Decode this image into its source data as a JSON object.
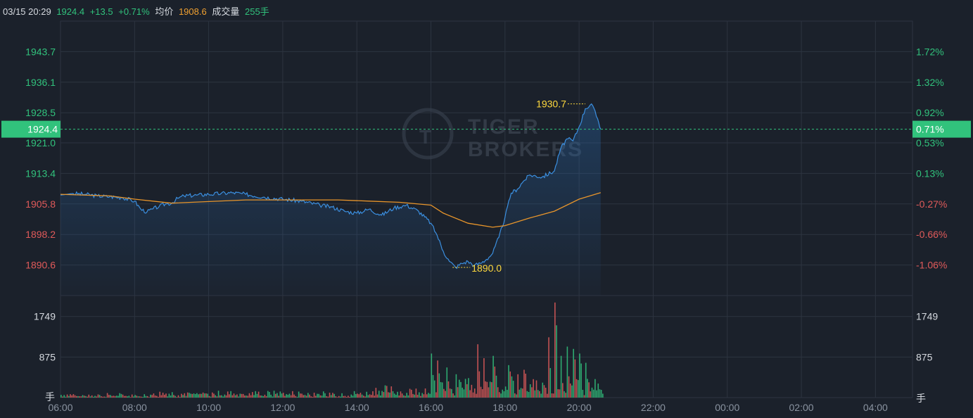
{
  "header": {
    "datetime": "03/15 20:29",
    "price": "1924.4",
    "change": "+13.5",
    "change_pct": "+0.71%",
    "avg_label": "均价",
    "avg_value": "1908.6",
    "volume_label": "成交量",
    "volume_value": "255手"
  },
  "watermark": {
    "line1": "TIGER",
    "line2": "BROKERS"
  },
  "colors": {
    "up": "#31c27c",
    "down": "#e05a5a",
    "price_line": "#3b8fe0",
    "avg_line": "#e8952b",
    "highlight": "#ffd93d",
    "grid": "#2d3440",
    "background": "#1b212b"
  },
  "chart_data": [
    {
      "type": "line",
      "prev_close": 1910.9,
      "current_price": 1924.4,
      "current_price_label": "1924.4",
      "current_pct_label": "0.71%",
      "ylim": [
        1883.0,
        1951.3
      ],
      "left_ticks": [
        {
          "value": 1943.7,
          "label": "1943.7",
          "dir": "up"
        },
        {
          "value": 1936.1,
          "label": "1936.1",
          "dir": "up"
        },
        {
          "value": 1928.5,
          "label": "1928.5",
          "dir": "up"
        },
        {
          "value": 1921.0,
          "label": "1921.0",
          "dir": "up"
        },
        {
          "value": 1913.4,
          "label": "1913.4",
          "dir": "up"
        },
        {
          "value": 1905.8,
          "label": "1905.8",
          "dir": "down"
        },
        {
          "value": 1898.2,
          "label": "1898.2",
          "dir": "down"
        },
        {
          "value": 1890.6,
          "label": "1890.6",
          "dir": "down"
        }
      ],
      "right_ticks": [
        {
          "value": 1943.7,
          "label": "1.72%",
          "dir": "up"
        },
        {
          "value": 1936.1,
          "label": "1.32%",
          "dir": "up"
        },
        {
          "value": 1928.5,
          "label": "0.92%",
          "dir": "up"
        },
        {
          "value": 1921.0,
          "label": "0.53%",
          "dir": "up"
        },
        {
          "value": 1913.4,
          "label": "0.13%",
          "dir": "up"
        },
        {
          "value": 1905.8,
          "label": "-0.27%",
          "dir": "down"
        },
        {
          "value": 1898.2,
          "label": "-0.66%",
          "dir": "down"
        },
        {
          "value": 1890.6,
          "label": "-1.06%",
          "dir": "down"
        }
      ],
      "x_ticks": [
        "06:00",
        "08:00",
        "10:00",
        "12:00",
        "14:00",
        "16:00",
        "18:00",
        "20:00",
        "22:00",
        "00:00",
        "02:00",
        "04:00"
      ],
      "x_range_minutes": [
        0,
        1380
      ],
      "high": {
        "label": "1930.7",
        "value": 1930.7,
        "minute": 850
      },
      "low": {
        "label": "1890.0",
        "value": 1890.0,
        "minute": 635
      },
      "price_series": {
        "x": [
          0,
          20,
          40,
          60,
          80,
          100,
          120,
          130,
          140,
          150,
          160,
          170,
          180,
          190,
          200,
          220,
          240,
          260,
          280,
          300,
          330,
          360,
          390,
          420,
          440,
          460,
          480,
          500,
          520,
          540,
          560,
          580,
          600,
          610,
          620,
          630,
          640,
          650,
          660,
          670,
          680,
          690,
          700,
          710,
          720,
          730,
          740,
          750,
          760,
          780,
          800,
          810,
          820,
          830,
          840,
          850,
          860,
          870,
          875
        ],
        "y": [
          1908.0,
          1908.4,
          1908.2,
          1907.8,
          1907.6,
          1907.4,
          1906.5,
          1904.5,
          1903.8,
          1904.6,
          1905.2,
          1905.8,
          1906.0,
          1907.2,
          1907.8,
          1908.0,
          1908.2,
          1908.4,
          1908.6,
          1908.2,
          1907.5,
          1907.0,
          1906.5,
          1905.5,
          1905.0,
          1904.0,
          1903.5,
          1904.5,
          1903.0,
          1904.8,
          1905.5,
          1904.0,
          1901.0,
          1898.0,
          1894.0,
          1891.5,
          1890.0,
          1891.0,
          1891.5,
          1890.5,
          1891.0,
          1892.0,
          1893.5,
          1897.5,
          1902.5,
          1908.5,
          1909.5,
          1911.5,
          1913.0,
          1912.5,
          1914.0,
          1919.5,
          1922.0,
          1921.5,
          1925.0,
          1929.5,
          1930.7,
          1927.0,
          1924.4
        ]
      },
      "avg_series": {
        "x": [
          0,
          80,
          120,
          180,
          300,
          450,
          500,
          550,
          600,
          620,
          660,
          700,
          720,
          760,
          800,
          840,
          875
        ],
        "y": [
          1908.2,
          1907.8,
          1907.0,
          1906.0,
          1906.8,
          1906.8,
          1906.5,
          1906.2,
          1905.5,
          1903.5,
          1901.0,
          1900.0,
          1900.4,
          1902.3,
          1904.0,
          1907.0,
          1908.6
        ]
      }
    },
    {
      "type": "bar",
      "ylabel": "手",
      "unit_label_right": "手",
      "ylim": [
        0,
        2200
      ],
      "ticks": [
        {
          "value": 1749,
          "label": "1749"
        },
        {
          "value": 875,
          "label": "875"
        }
      ],
      "x_range_minutes": [
        0,
        1380
      ],
      "bins": 176,
      "bin_minutes": 5,
      "spikes": [
        {
          "bin": 120,
          "value": 950
        },
        {
          "bin": 122,
          "value": 800
        },
        {
          "bin": 125,
          "value": 650
        },
        {
          "bin": 135,
          "value": 1150
        },
        {
          "bin": 137,
          "value": 850
        },
        {
          "bin": 140,
          "value": 900
        },
        {
          "bin": 145,
          "value": 700
        },
        {
          "bin": 150,
          "value": 600
        },
        {
          "bin": 158,
          "value": 1300
        },
        {
          "bin": 160,
          "value": 2050
        },
        {
          "bin": 162,
          "value": 900
        },
        {
          "bin": 164,
          "value": 1100
        },
        {
          "bin": 166,
          "value": 1050
        },
        {
          "bin": 168,
          "value": 950
        },
        {
          "bin": 170,
          "value": 750
        }
      ]
    }
  ]
}
